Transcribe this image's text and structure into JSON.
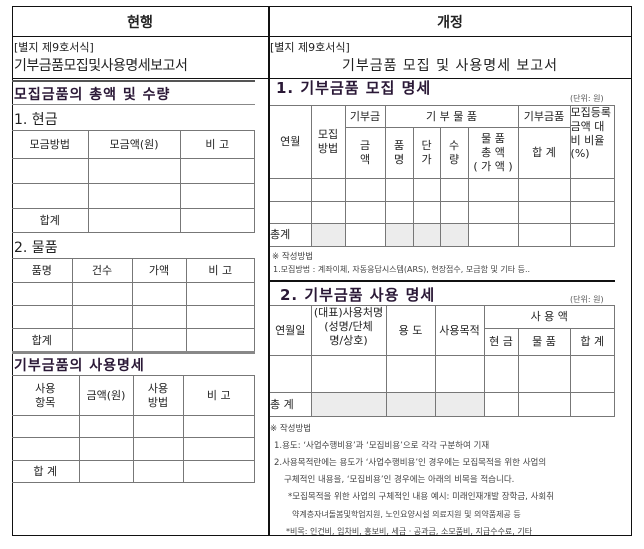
{
  "header": {
    "current": "현행",
    "revised": "개정"
  },
  "left": {
    "form_no": "[별지 제9호서식]",
    "form_title": "기부금품모집및사용명세보고서",
    "section1": "모집금품의 총액 및 수량",
    "cash": {
      "title": "1. 현금",
      "headers": [
        "모금방법",
        "모금액(원)",
        "비 고"
      ],
      "total": "합계"
    },
    "goods": {
      "title": "2. 물품",
      "headers": [
        "품명",
        "건수",
        "가액",
        "비 고"
      ],
      "total": "합계"
    },
    "section2": "기부금품의 사용명세",
    "usage": {
      "headers": [
        "사용\n항목",
        "금액(원)",
        "사용\n방법",
        "비 고"
      ],
      "total": "합 계"
    }
  },
  "right": {
    "form_no": "[별지 제9호서식]",
    "form_title": "기부금품 모집 및 사용명세 보고서",
    "s1": {
      "title": "1. 기부금품 모집 명세",
      "unit": "(단위: 원)",
      "h": {
        "month": "연월",
        "method": "모집\n방법",
        "money": "기부금",
        "amount": "금\n액",
        "goods": "기 부 물 품",
        "item": "품\n명",
        "price": "단\n가",
        "qty": "수\n량",
        "goods_total": "물 품\n총 액\n( 가 액 )",
        "sum_group": "기부금품",
        "sum": "합 계",
        "ratio": "모집등록\n금액 대\n비 비율\n(%)"
      },
      "total": "총계",
      "note_title": "※ 작성방법",
      "note1": "1.모집방법 : 계좌이체, 자동응답시스템(ARS), 현장접수, 모금함 및 기타 등.."
    },
    "s2": {
      "title": "2. 기부금품 사용 명세",
      "unit": "(단위: 원)",
      "h": {
        "date": "연월일",
        "user": "(대표)사용처명\n(성명/단체\n명/상호)",
        "use": "용 도",
        "purpose": "사용목적",
        "amount": "사 용 액",
        "cash": "현 금",
        "goods": "물 품",
        "sum": "합 계"
      },
      "total": "총 계",
      "notes": [
        "※ 작성방법",
        "1.용도: ‘사업수행비용’과 ‘모집비용’으로 각각 구분하여 기재",
        "2.사용목적란에는 용도가 ‘사업수행비용’인 경우에는 모집목적을 위한 사업의",
        "구체적인 내용을, ‘모집비용’인 경우에는 아래의 비목을 적습니다.",
        "*모집목적을 위한 사업의 구체적인 내용 예시: 미래인재개발 장학금, 사회취",
        "약계층자녀돌봄및학업지원, 노인요양시설 의료지원 및 의약품제공 등",
        "*비목: 인건비, 임차비, 홍보비, 세금 · 공과금, 소모품비, 지급수수료, 기타"
      ]
    }
  }
}
